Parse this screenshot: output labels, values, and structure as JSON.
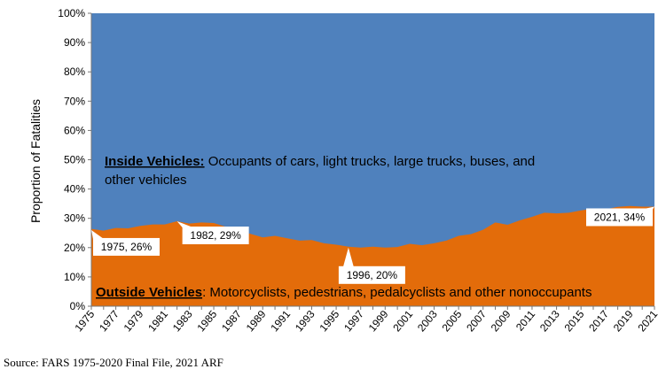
{
  "chart_data": {
    "type": "area",
    "stacked": true,
    "percent": true,
    "ylabel": "Proportion of Fatalities",
    "ylim": [
      0,
      100
    ],
    "yticks": [
      "0%",
      "10%",
      "20%",
      "30%",
      "40%",
      "50%",
      "60%",
      "70%",
      "80%",
      "90%",
      "100%"
    ],
    "x": [
      1975,
      1976,
      1977,
      1978,
      1979,
      1980,
      1981,
      1982,
      1983,
      1984,
      1985,
      1986,
      1987,
      1988,
      1989,
      1990,
      1991,
      1992,
      1993,
      1994,
      1995,
      1996,
      1997,
      1998,
      1999,
      2000,
      2001,
      2002,
      2003,
      2004,
      2005,
      2006,
      2007,
      2008,
      2009,
      2010,
      2011,
      2012,
      2013,
      2014,
      2015,
      2016,
      2017,
      2018,
      2019,
      2020,
      2021
    ],
    "xtick_labels": [
      "1975",
      "1977",
      "1979",
      "1981",
      "1983",
      "1985",
      "1987",
      "1989",
      "1991",
      "1993",
      "1995",
      "1997",
      "1999",
      "2001",
      "2003",
      "2005",
      "2007",
      "2009",
      "2011",
      "2013",
      "2015",
      "2017",
      "2019",
      "2021"
    ],
    "series": [
      {
        "name": "Outside Vehicles",
        "color": "#E36C0A",
        "values": [
          26.4,
          25.8,
          26.7,
          26.6,
          27.4,
          27.9,
          27.9,
          29.0,
          28.2,
          28.6,
          28.4,
          27.1,
          25.8,
          24.7,
          23.5,
          24.0,
          23.2,
          22.4,
          22.6,
          21.5,
          21.0,
          20.3,
          20.0,
          20.3,
          20.0,
          20.2,
          21.3,
          20.8,
          21.5,
          22.4,
          24.0,
          24.6,
          26.1,
          28.6,
          27.8,
          29.3,
          30.5,
          31.9,
          31.7,
          31.9,
          32.7,
          33.3,
          33.1,
          33.9,
          34.2,
          34.0,
          34.0
        ]
      },
      {
        "name": "Inside Vehicles",
        "color": "#4F81BD",
        "values": "remainder to 100%"
      }
    ],
    "annotations": [
      {
        "label": "1975, 26%",
        "x": 1975,
        "y": 26
      },
      {
        "label": "1982, 29%",
        "x": 1982,
        "y": 29
      },
      {
        "label": "1996, 20%",
        "x": 1996,
        "y": 20
      },
      {
        "label": "2021, 34%",
        "x": 2021,
        "y": 34
      }
    ],
    "inside_label": {
      "bold": "Inside Vehicles:",
      "line1": " Occupants of cars, light trucks, large trucks, buses, and",
      "line2": "other vehicles"
    },
    "outside_label": {
      "bold": "Outside Vehicles",
      "rest": ": Motorcyclists, pedestrians, pedalcyclists and other nonoccupants"
    }
  },
  "source": "Source: FARS 1975-2020 Final File, 2021 ARF"
}
